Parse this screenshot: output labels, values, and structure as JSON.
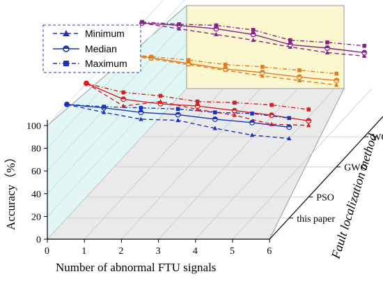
{
  "chart_data": {
    "type": "line",
    "projection": "3d",
    "xlabel": "Number of abnormal FTU signals",
    "ylabel": "Accuracy（%）",
    "zlabel": "Fault localization method",
    "x_ticks": [
      "0",
      "1",
      "2",
      "3",
      "4",
      "5",
      "6"
    ],
    "y_ticks": [
      "0",
      "20",
      "40",
      "60",
      "80",
      "100"
    ],
    "xlim": [
      0,
      6
    ],
    "ylim": [
      0,
      100
    ],
    "grid": true,
    "legend_position": "top-left",
    "legend": [
      {
        "label": "Minimum",
        "line": "dashed",
        "marker": "triangle"
      },
      {
        "label": "Median",
        "line": "solid",
        "marker": "circle"
      },
      {
        "label": "Maximum",
        "line": "dash-dot",
        "marker": "square"
      }
    ],
    "series_ids": [
      "Minimum",
      "Median",
      "Maximum"
    ],
    "methods": [
      {
        "name": "this paper",
        "color": "#1a33b8",
        "x": [
          0,
          1,
          2,
          3,
          4,
          5,
          6
        ],
        "min": [
          100,
          93,
          87,
          86,
          79,
          73,
          70
        ],
        "median": [
          100,
          97,
          93,
          91,
          87,
          84,
          80
        ],
        "max": [
          100,
          98,
          97,
          96,
          93,
          92,
          88
        ]
      },
      {
        "name": "PSO",
        "color": "#d81e1e",
        "x": [
          0,
          1,
          2,
          3,
          4,
          5,
          6
        ],
        "min": [
          100,
          80,
          84,
          77,
          72,
          64,
          63
        ],
        "median": [
          100,
          86,
          82,
          80,
          76,
          72,
          67
        ],
        "max": [
          100,
          92,
          89,
          84,
          83,
          81,
          77
        ]
      },
      {
        "name": "GWO",
        "color": "#e87b18",
        "x": [
          0,
          1,
          2,
          3,
          4,
          5,
          6
        ],
        "min": [
          100,
          95,
          90,
          85,
          80,
          76,
          72
        ],
        "median": [
          100,
          96,
          91,
          86,
          83,
          79,
          76
        ],
        "max": [
          100,
          97,
          94,
          90,
          88,
          85,
          82
        ]
      },
      {
        "name": "WOA",
        "color": "#8a1f8a",
        "x": [
          0,
          1,
          2,
          3,
          4,
          5,
          6
        ],
        "min": [
          100,
          95,
          90,
          85,
          79,
          74,
          71
        ],
        "median": [
          100,
          98,
          95,
          90,
          81,
          78,
          74
        ],
        "max": [
          101,
          99,
          98,
          94,
          85,
          83,
          80
        ]
      }
    ]
  }
}
